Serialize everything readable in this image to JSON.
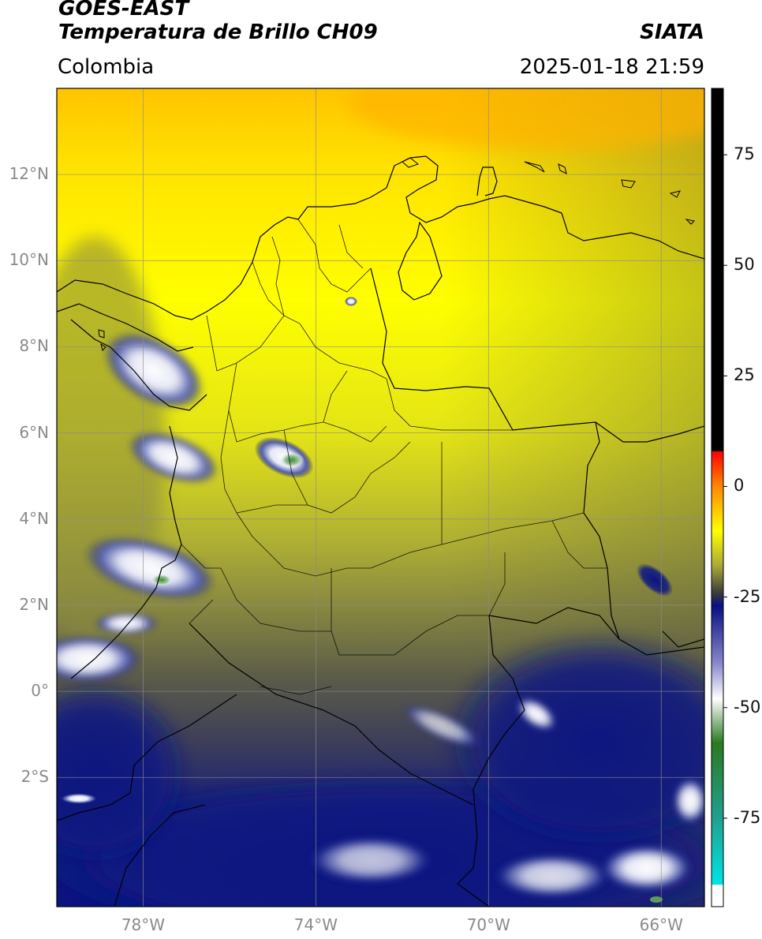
{
  "header": {
    "satellite": "GOES-EAST",
    "product": "Temperatura de Brillo CH09",
    "institution": "SIATA",
    "region": "Colombia",
    "datetime": "2025-01-18 21:59"
  },
  "map": {
    "lon_range": [
      -80,
      -65
    ],
    "lat_range": [
      -5,
      14
    ],
    "lat_ticks": [
      {
        "value": 12,
        "label": "12°N"
      },
      {
        "value": 10,
        "label": "10°N"
      },
      {
        "value": 8,
        "label": "8°N"
      },
      {
        "value": 6,
        "label": "6°N"
      },
      {
        "value": 4,
        "label": "4°N"
      },
      {
        "value": 2,
        "label": "2°N"
      },
      {
        "value": 0,
        "label": "0°"
      },
      {
        "value": -2,
        "label": "2°S"
      }
    ],
    "lon_ticks": [
      {
        "value": -78,
        "label": "78°W"
      },
      {
        "value": -74,
        "label": "74°W"
      },
      {
        "value": -70,
        "label": "70°W"
      },
      {
        "value": -66,
        "label": "66°W"
      }
    ],
    "grid": true,
    "colors": {
      "warm_north": "#ffd000",
      "yellow": "#ffff00",
      "olive": "#a7a73a",
      "gray": "#4a4a4a",
      "navy": "#0a1478",
      "cloud_white": "#ffffff",
      "border": "#000000"
    }
  },
  "colorbar": {
    "range": [
      -95,
      90
    ],
    "ticks": [
      {
        "value": 75,
        "label": "75"
      },
      {
        "value": 50,
        "label": "50"
      },
      {
        "value": 25,
        "label": "25"
      },
      {
        "value": 0,
        "label": "0"
      },
      {
        "value": -25,
        "label": "-25"
      },
      {
        "value": -50,
        "label": "-50"
      },
      {
        "value": -75,
        "label": "-75"
      }
    ],
    "stops": [
      {
        "value": 90,
        "color": "#000000"
      },
      {
        "value": 8,
        "color": "#000000"
      },
      {
        "value": 7.9,
        "color": "#ff0000"
      },
      {
        "value": 0,
        "color": "#ff8800"
      },
      {
        "value": -10,
        "color": "#ffff00"
      },
      {
        "value": -18,
        "color": "#a8a838"
      },
      {
        "value": -24,
        "color": "#3c3c3c"
      },
      {
        "value": -27,
        "color": "#0a0f82"
      },
      {
        "value": -40,
        "color": "#8888cc"
      },
      {
        "value": -48,
        "color": "#ffffff"
      },
      {
        "value": -58,
        "color": "#2a7a20"
      },
      {
        "value": -75,
        "color": "#20a090"
      },
      {
        "value": -90,
        "color": "#00e5e5"
      },
      {
        "value": -90.1,
        "color": "#ffffff"
      },
      {
        "value": -95,
        "color": "#ffffff"
      }
    ]
  }
}
